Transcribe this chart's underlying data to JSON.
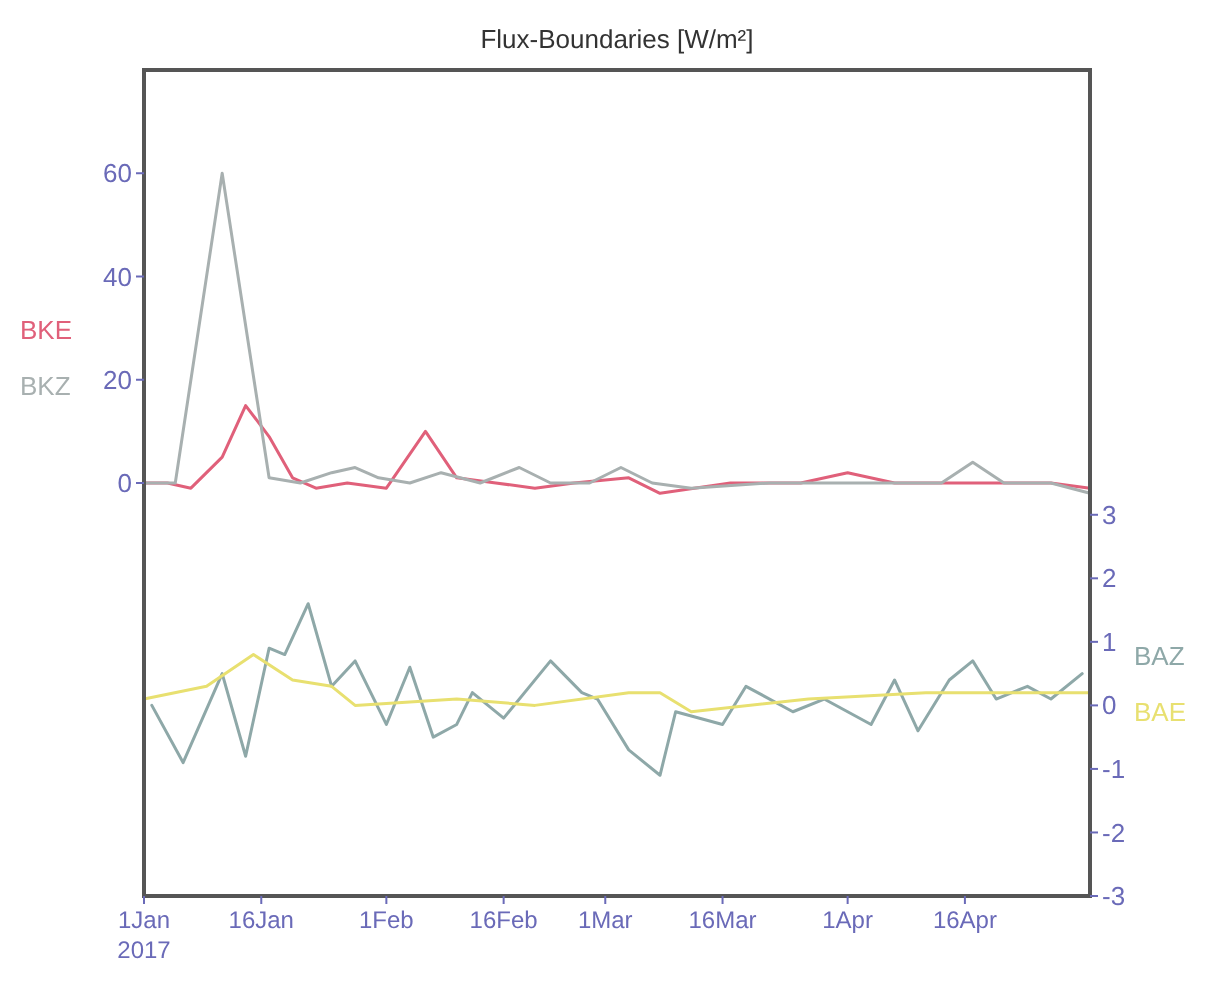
{
  "chart_data": {
    "type": "line",
    "title": "Flux-Boundaries [W/m²]",
    "xlim": [
      "2017-01-01",
      "2017-05-02"
    ],
    "xticks": [
      {
        "value": "2017-01-01",
        "label": "1Jan\n2017"
      },
      {
        "value": "2017-01-16",
        "label": "16Jan"
      },
      {
        "value": "2017-02-01",
        "label": "1Feb"
      },
      {
        "value": "2017-02-16",
        "label": "16Feb"
      },
      {
        "value": "2017-03-01",
        "label": "1Mar"
      },
      {
        "value": "2017-03-16",
        "label": "16Mar"
      },
      {
        "value": "2017-04-01",
        "label": "1Apr"
      },
      {
        "value": "2017-04-16",
        "label": "16Apr"
      }
    ],
    "ylim": [
      -80,
      80
    ],
    "yticks": [
      0,
      20,
      40,
      60
    ],
    "y2lim": [
      -3,
      10
    ],
    "y2ticks": [
      -3,
      -2,
      -1,
      0,
      1,
      2,
      3
    ],
    "grid": false,
    "marker": "none",
    "line_style": "solid",
    "series": [
      {
        "name": "BKE",
        "color": "#e0607a",
        "x": [
          "2017-01-01",
          "2017-01-04",
          "2017-01-07",
          "2017-01-11",
          "2017-01-14",
          "2017-01-17",
          "2017-01-20",
          "2017-01-23",
          "2017-01-27",
          "2017-02-01",
          "2017-02-06",
          "2017-02-10",
          "2017-02-15",
          "2017-02-20",
          "2017-02-25",
          "2017-03-04",
          "2017-03-08",
          "2017-03-17",
          "2017-03-26",
          "2017-04-01",
          "2017-04-07",
          "2017-04-21",
          "2017-04-27",
          "2017-05-02"
        ],
        "values": [
          0,
          0,
          -1,
          5,
          15,
          9,
          1,
          -1,
          0,
          -1,
          10,
          1,
          0,
          -1,
          0,
          1,
          -2,
          0,
          0,
          2,
          0,
          0,
          0,
          -1
        ]
      },
      {
        "name": "BKZ",
        "color": "#a8b0b0",
        "x": [
          "2017-01-01",
          "2017-01-05",
          "2017-01-11",
          "2017-01-17",
          "2017-01-21",
          "2017-01-25",
          "2017-01-28",
          "2017-01-31",
          "2017-02-04",
          "2017-02-08",
          "2017-02-13",
          "2017-02-18",
          "2017-02-22",
          "2017-02-27",
          "2017-03-03",
          "2017-03-07",
          "2017-03-12",
          "2017-03-22",
          "2017-04-06",
          "2017-04-13",
          "2017-04-17",
          "2017-04-21",
          "2017-04-27",
          "2017-05-02"
        ],
        "values": [
          0,
          0,
          60,
          1,
          0,
          2,
          3,
          1,
          0,
          2,
          0,
          3,
          0,
          0,
          3,
          0,
          -1,
          0,
          0,
          0,
          4,
          0,
          0,
          -2
        ]
      },
      {
        "name": "BAZ",
        "color": "#8ea8a8",
        "axis": "y2",
        "x": [
          "2017-01-02",
          "2017-01-06",
          "2017-01-11",
          "2017-01-14",
          "2017-01-17",
          "2017-01-19",
          "2017-01-22",
          "2017-01-25",
          "2017-01-28",
          "2017-02-01",
          "2017-02-04",
          "2017-02-07",
          "2017-02-10",
          "2017-02-12",
          "2017-02-16",
          "2017-02-22",
          "2017-02-26",
          "2017-02-28",
          "2017-03-04",
          "2017-03-08",
          "2017-03-10",
          "2017-03-16",
          "2017-03-19",
          "2017-03-25",
          "2017-03-29",
          "2017-04-04",
          "2017-04-07",
          "2017-04-10",
          "2017-04-14",
          "2017-04-17",
          "2017-04-20",
          "2017-04-24",
          "2017-04-27",
          "2017-05-01"
        ],
        "values": [
          0,
          -0.9,
          0.5,
          -0.8,
          0.9,
          0.8,
          1.6,
          0.3,
          0.7,
          -0.3,
          0.6,
          -0.5,
          -0.3,
          0.2,
          -0.2,
          0.7,
          0.2,
          0.1,
          -0.7,
          -1.1,
          -0.1,
          -0.3,
          0.3,
          -0.1,
          0.1,
          -0.3,
          0.4,
          -0.4,
          0.4,
          0.7,
          0.1,
          0.3,
          0.1,
          0.5
        ]
      },
      {
        "name": "BAE",
        "color": "#e8e070",
        "axis": "y2",
        "x": [
          "2017-01-01",
          "2017-01-09",
          "2017-01-15",
          "2017-01-20",
          "2017-01-25",
          "2017-01-28",
          "2017-02-10",
          "2017-02-20",
          "2017-03-04",
          "2017-03-08",
          "2017-03-12",
          "2017-03-27",
          "2017-04-11",
          "2017-05-02"
        ],
        "values": [
          0.1,
          0.3,
          0.8,
          0.4,
          0.3,
          0,
          0.1,
          0,
          0.2,
          0.2,
          -0.1,
          0.1,
          0.2,
          0.2
        ]
      }
    ]
  }
}
